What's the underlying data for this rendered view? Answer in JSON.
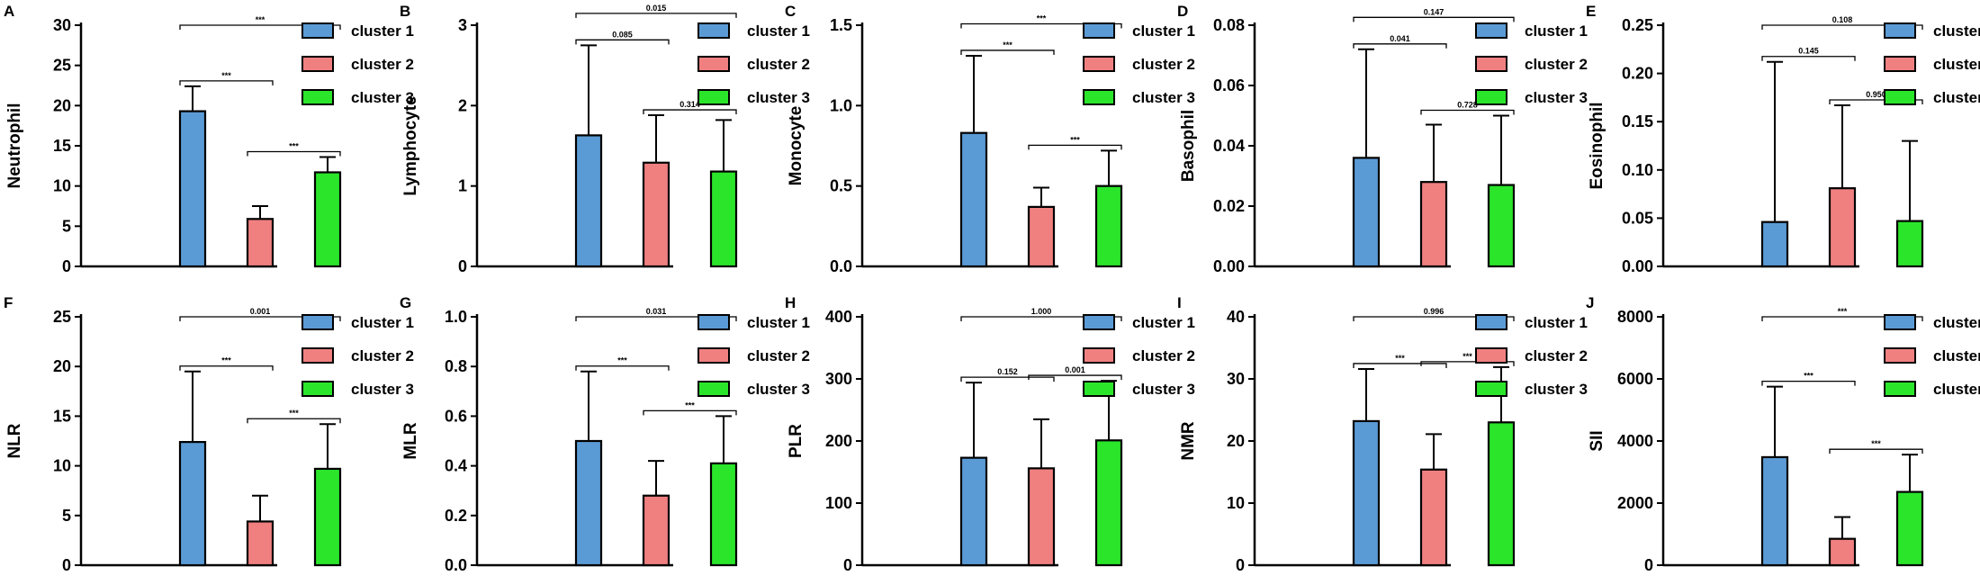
{
  "figure": {
    "legend_labels": [
      "cluster 1",
      "cluster 2",
      "cluster 3"
    ],
    "colors": {
      "cluster 1": "#5B9BD5",
      "cluster 2": "#F08080",
      "cluster 3": "#2BE52B"
    }
  },
  "chart_data": [
    {
      "panel": "A",
      "type": "bar",
      "ylabel": "Neutrophil",
      "categories": [
        "cluster 1",
        "cluster 2",
        "cluster 3"
      ],
      "values": [
        19.3,
        5.9,
        11.7
      ],
      "errors": [
        3.1,
        1.6,
        1.9
      ],
      "ylim": [
        0,
        30
      ],
      "yticks": [
        0,
        5,
        10,
        15,
        20,
        25,
        30
      ],
      "tick_labels": [
        "0",
        "5",
        "10",
        "15",
        "20",
        "25",
        "30"
      ],
      "comparisons": [
        {
          "pair": [
            1,
            2
          ],
          "label": "***"
        },
        {
          "pair": [
            1,
            3
          ],
          "label": "***"
        },
        {
          "pair": [
            2,
            3
          ],
          "label": "***"
        }
      ],
      "legend": "right"
    },
    {
      "panel": "B",
      "type": "bar",
      "ylabel": "Lymphocyte",
      "categories": [
        "cluster 1",
        "cluster 2",
        "cluster 3"
      ],
      "values": [
        1.63,
        1.29,
        1.18
      ],
      "errors": [
        1.12,
        0.59,
        0.64
      ],
      "ylim": [
        0,
        3
      ],
      "yticks": [
        0,
        1,
        2,
        3
      ],
      "tick_labels": [
        "0",
        "1",
        "2",
        "3"
      ],
      "comparisons": [
        {
          "pair": [
            1,
            2
          ],
          "label": "0.085"
        },
        {
          "pair": [
            1,
            3
          ],
          "label": "0.015"
        },
        {
          "pair": [
            2,
            3
          ],
          "label": "0.314"
        }
      ],
      "legend": "right"
    },
    {
      "panel": "C",
      "type": "bar",
      "ylabel": "Monocyte",
      "categories": [
        "cluster 1",
        "cluster 2",
        "cluster 3"
      ],
      "values": [
        0.83,
        0.37,
        0.5
      ],
      "errors": [
        0.48,
        0.12,
        0.22
      ],
      "ylim": [
        0,
        1.5
      ],
      "yticks": [
        0,
        0.5,
        1.0,
        1.5
      ],
      "tick_labels": [
        "0.0",
        "0.5",
        "1.0",
        "1.5"
      ],
      "comparisons": [
        {
          "pair": [
            1,
            2
          ],
          "label": "***"
        },
        {
          "pair": [
            1,
            3
          ],
          "label": "***"
        },
        {
          "pair": [
            2,
            3
          ],
          "label": "***"
        }
      ],
      "legend": "right"
    },
    {
      "panel": "D",
      "type": "bar",
      "ylabel": "Basophil",
      "categories": [
        "cluster 1",
        "cluster 2",
        "cluster 3"
      ],
      "values": [
        0.036,
        0.028,
        0.027
      ],
      "errors": [
        0.036,
        0.019,
        0.023
      ],
      "ylim": [
        0,
        0.08
      ],
      "yticks": [
        0,
        0.02,
        0.04,
        0.06,
        0.08
      ],
      "tick_labels": [
        "0.00",
        "0.02",
        "0.04",
        "0.06",
        "0.08"
      ],
      "comparisons": [
        {
          "pair": [
            1,
            2
          ],
          "label": "0.041"
        },
        {
          "pair": [
            1,
            3
          ],
          "label": "0.147"
        },
        {
          "pair": [
            2,
            3
          ],
          "label": "0.728"
        }
      ],
      "legend": "right"
    },
    {
      "panel": "E",
      "type": "bar",
      "ylabel": "Eosinophil",
      "categories": [
        "cluster 1",
        "cluster 2",
        "cluster 3"
      ],
      "values": [
        0.046,
        0.081,
        0.047
      ],
      "errors": [
        0.166,
        0.086,
        0.083
      ],
      "ylim": [
        0,
        0.25
      ],
      "yticks": [
        0,
        0.05,
        0.1,
        0.15,
        0.2,
        0.25
      ],
      "tick_labels": [
        "0.00",
        "0.05",
        "0.10",
        "0.15",
        "0.20",
        "0.25"
      ],
      "comparisons": [
        {
          "pair": [
            1,
            2
          ],
          "label": "0.145"
        },
        {
          "pair": [
            1,
            3
          ],
          "label": "0.108"
        },
        {
          "pair": [
            2,
            3
          ],
          "label": "0.950"
        }
      ],
      "legend": "right"
    },
    {
      "panel": "F",
      "type": "bar",
      "ylabel": "NLR",
      "categories": [
        "cluster 1",
        "cluster 2",
        "cluster 3"
      ],
      "values": [
        12.4,
        4.4,
        9.7
      ],
      "errors": [
        7.1,
        2.6,
        4.5
      ],
      "ylim": [
        0,
        25
      ],
      "yticks": [
        0,
        5,
        10,
        15,
        20,
        25
      ],
      "tick_labels": [
        "0",
        "5",
        "10",
        "15",
        "20",
        "25"
      ],
      "comparisons": [
        {
          "pair": [
            1,
            2
          ],
          "label": "***"
        },
        {
          "pair": [
            1,
            3
          ],
          "label": "0.001"
        },
        {
          "pair": [
            2,
            3
          ],
          "label": "***"
        }
      ],
      "legend": "right"
    },
    {
      "panel": "G",
      "type": "bar",
      "ylabel": "MLR",
      "categories": [
        "cluster 1",
        "cluster 2",
        "cluster 3"
      ],
      "values": [
        0.5,
        0.28,
        0.41
      ],
      "errors": [
        0.28,
        0.14,
        0.19
      ],
      "ylim": [
        0,
        1.0
      ],
      "yticks": [
        0,
        0.2,
        0.4,
        0.6,
        0.8,
        1.0
      ],
      "tick_labels": [
        "0.0",
        "0.2",
        "0.4",
        "0.6",
        "0.8",
        "1.0"
      ],
      "comparisons": [
        {
          "pair": [
            1,
            2
          ],
          "label": "***"
        },
        {
          "pair": [
            1,
            3
          ],
          "label": "0.031"
        },
        {
          "pair": [
            2,
            3
          ],
          "label": "***"
        }
      ],
      "legend": "right"
    },
    {
      "panel": "H",
      "type": "bar",
      "ylabel": "PLR",
      "categories": [
        "cluster 1",
        "cluster 2",
        "cluster 3"
      ],
      "values": [
        173,
        156,
        201
      ],
      "errors": [
        121,
        79,
        96
      ],
      "ylim": [
        0,
        400
      ],
      "yticks": [
        0,
        100,
        200,
        300,
        400
      ],
      "tick_labels": [
        "0",
        "100",
        "200",
        "300",
        "400"
      ],
      "comparisons": [
        {
          "pair": [
            1,
            2
          ],
          "label": "0.152"
        },
        {
          "pair": [
            1,
            3
          ],
          "label": "1.000"
        },
        {
          "pair": [
            2,
            3
          ],
          "label": "0.001"
        }
      ],
      "legend": "right"
    },
    {
      "panel": "I",
      "type": "bar",
      "ylabel": "NMR",
      "categories": [
        "cluster 1",
        "cluster 2",
        "cluster 3"
      ],
      "values": [
        23.2,
        15.4,
        23.0
      ],
      "errors": [
        8.4,
        5.7,
        8.9
      ],
      "ylim": [
        0,
        40
      ],
      "yticks": [
        0,
        10,
        20,
        30,
        40
      ],
      "tick_labels": [
        "0",
        "10",
        "20",
        "30",
        "40"
      ],
      "comparisons": [
        {
          "pair": [
            1,
            2
          ],
          "label": "***"
        },
        {
          "pair": [
            1,
            3
          ],
          "label": "0.996"
        },
        {
          "pair": [
            2,
            3
          ],
          "label": "***"
        }
      ],
      "legend": "right"
    },
    {
      "panel": "J",
      "type": "bar",
      "ylabel": "SII",
      "categories": [
        "cluster 1",
        "cluster 2",
        "cluster 3"
      ],
      "values": [
        3480,
        850,
        2360
      ],
      "errors": [
        2270,
        700,
        1200
      ],
      "ylim": [
        0,
        8000
      ],
      "yticks": [
        0,
        2000,
        4000,
        6000,
        8000
      ],
      "tick_labels": [
        "0",
        "2000",
        "4000",
        "6000",
        "8000"
      ],
      "comparisons": [
        {
          "pair": [
            1,
            2
          ],
          "label": "***"
        },
        {
          "pair": [
            1,
            3
          ],
          "label": "***"
        },
        {
          "pair": [
            2,
            3
          ],
          "label": "***"
        }
      ],
      "legend": "right"
    }
  ]
}
